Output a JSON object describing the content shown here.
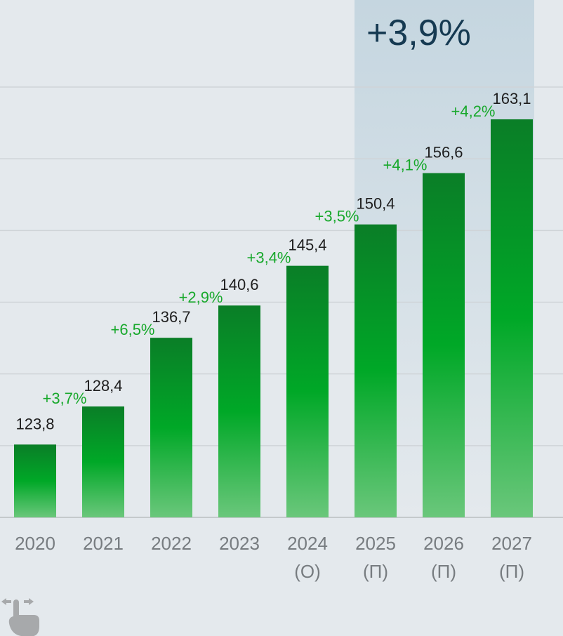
{
  "chart_data": {
    "type": "bar",
    "categories": [
      "2020",
      "2021",
      "2022",
      "2023",
      "2024",
      "2025",
      "2026",
      "2027"
    ],
    "category_notes": [
      "",
      "",
      "",
      "",
      "(О)",
      "(П)",
      "(П)",
      "(П)"
    ],
    "values": [
      123.8,
      128.4,
      136.7,
      140.6,
      145.4,
      150.4,
      156.6,
      163.1
    ],
    "value_labels": [
      "123,8",
      "128,4",
      "136,7",
      "140,6",
      "145,4",
      "150,4",
      "156,6",
      "163,1"
    ],
    "growth_labels": [
      "+3,7%",
      "+6,5%",
      "+2,9%",
      "+3,4%",
      "+3,5%",
      "+4,1%",
      "+4,2%",
      ""
    ],
    "highlight": {
      "label": "+3,9%",
      "from_category": "2025",
      "to_category": "2027"
    },
    "ylim": [
      115,
      167
    ],
    "grid": true,
    "colors": {
      "bar_top": "#0a7e27",
      "bar_mid": "#00a827",
      "bar_bottom": "#6ac77b",
      "growth": "#17a82b",
      "highlight_top": "#c5d6e0",
      "highlight_bottom": "#e4e9ed",
      "background": "#e4e9ed"
    }
  },
  "icons": {
    "swipe": "swipe-hand-icon"
  }
}
